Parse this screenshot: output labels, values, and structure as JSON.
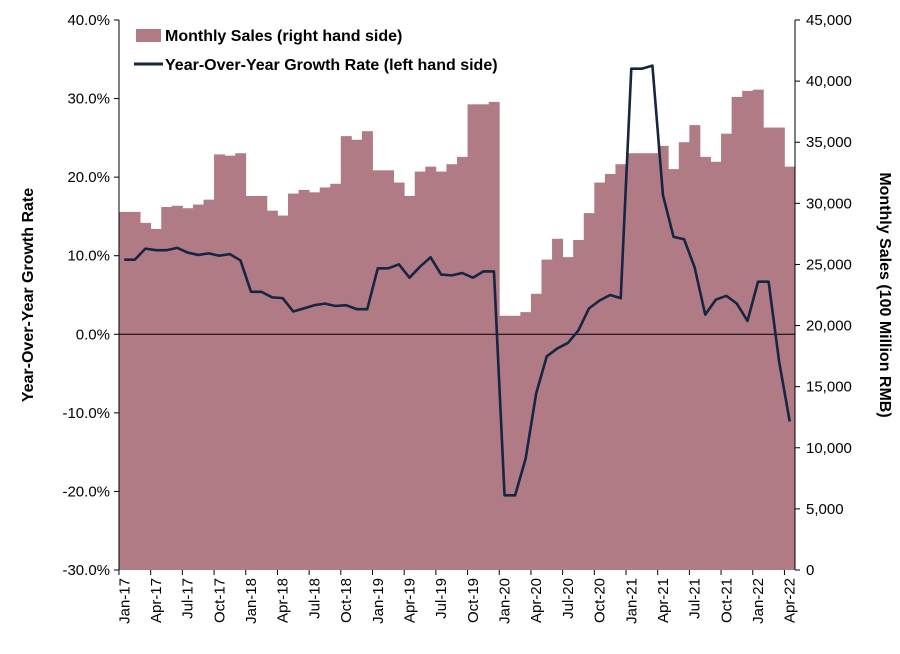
{
  "chart_data": {
    "type": "bar+line",
    "categories": [
      "Jan-17",
      "Feb-17",
      "Mar-17",
      "Apr-17",
      "May-17",
      "Jun-17",
      "Jul-17",
      "Aug-17",
      "Sep-17",
      "Oct-17",
      "Nov-17",
      "Dec-17",
      "Jan-18",
      "Feb-18",
      "Mar-18",
      "Apr-18",
      "May-18",
      "Jun-18",
      "Jul-18",
      "Aug-18",
      "Sep-18",
      "Oct-18",
      "Nov-18",
      "Dec-18",
      "Jan-19",
      "Feb-19",
      "Mar-19",
      "Apr-19",
      "May-19",
      "Jun-19",
      "Jul-19",
      "Aug-19",
      "Sep-19",
      "Oct-19",
      "Nov-19",
      "Dec-19",
      "Jan-20",
      "Feb-20",
      "Mar-20",
      "Apr-20",
      "May-20",
      "Jun-20",
      "Jul-20",
      "Aug-20",
      "Sep-20",
      "Oct-20",
      "Nov-20",
      "Dec-20",
      "Jan-21",
      "Feb-21",
      "Mar-21",
      "Apr-21",
      "May-21",
      "Jun-21",
      "Jul-21",
      "Aug-21",
      "Sep-21",
      "Oct-21",
      "Nov-21",
      "Dec-21",
      "Jan-22",
      "Feb-22",
      "Mar-22",
      "Apr-22"
    ],
    "x_tick_labels": [
      "Jan-17",
      "Apr-17",
      "Jul-17",
      "Oct-17",
      "Jan-18",
      "Apr-18",
      "Jul-18",
      "Oct-18",
      "Jan-19",
      "Apr-19",
      "Jul-19",
      "Oct-19",
      "Jan-20",
      "Apr-20",
      "Jul-20",
      "Oct-20",
      "Jan-21",
      "Apr-21",
      "Jul-21",
      "Oct-21",
      "Jan-22",
      "Apr-22"
    ],
    "series": [
      {
        "name": "Monthly Sales (right hand side)",
        "type": "bar",
        "axis": "right",
        "color": "#b07b84",
        "values": [
          29300,
          29300,
          28400,
          27900,
          29700,
          29800,
          29600,
          29900,
          30300,
          34000,
          33900,
          34100,
          30600,
          30600,
          29400,
          29000,
          30800,
          31100,
          30900,
          31300,
          31600,
          35500,
          35200,
          35900,
          32700,
          32700,
          31700,
          30600,
          32600,
          33000,
          32600,
          33200,
          33800,
          38100,
          38100,
          38300,
          20800,
          20800,
          21100,
          22600,
          25400,
          27100,
          25600,
          27000,
          29200,
          31700,
          32400,
          33200,
          34100,
          34100,
          34100,
          34700,
          32800,
          35000,
          36400,
          33800,
          33400,
          35700,
          38700,
          39200,
          39300,
          36200,
          36200,
          33000
        ]
      },
      {
        "name": "Year-Over-Year Growth Rate (left hand side)",
        "type": "line",
        "axis": "left",
        "color": "#152542",
        "values": [
          9.5,
          9.5,
          10.9,
          10.7,
          10.7,
          11.0,
          10.4,
          10.1,
          10.3,
          10.0,
          10.2,
          9.4,
          5.4,
          5.4,
          4.7,
          4.6,
          2.9,
          3.3,
          3.7,
          3.9,
          3.6,
          3.7,
          3.2,
          3.2,
          8.4,
          8.4,
          8.9,
          7.2,
          8.6,
          9.8,
          7.6,
          7.5,
          7.8,
          7.2,
          8.0,
          8.0,
          -20.5,
          -20.5,
          -15.8,
          -7.5,
          -2.8,
          -1.8,
          -1.1,
          0.5,
          3.3,
          4.3,
          5.0,
          4.6,
          33.8,
          33.8,
          34.2,
          17.7,
          12.4,
          12.1,
          8.5,
          2.5,
          4.4,
          4.9,
          3.9,
          1.7,
          6.7,
          6.7,
          -3.5,
          -11.1
        ]
      }
    ],
    "left_axis": {
      "title": "Year-Over-Year Growth Rate",
      "min": -30,
      "max": 40,
      "step": 10,
      "tick_labels": [
        "-30.0%",
        "-20.0%",
        "-10.0%",
        "0.0%",
        "10.0%",
        "20.0%",
        "30.0%",
        "40.0%"
      ]
    },
    "right_axis": {
      "title": "Monthly Sales (100 Million RMB)",
      "min": 0,
      "max": 45000,
      "step": 5000,
      "tick_labels": [
        "0",
        "5,000",
        "10,000",
        "15,000",
        "20,000",
        "25,000",
        "30,000",
        "35,000",
        "40,000",
        "45,000"
      ]
    },
    "legend": {
      "placement": "top-left",
      "items": [
        "Monthly Sales (right hand side)",
        "Year-Over-Year Growth Rate (left hand side)"
      ]
    },
    "grid": false
  }
}
